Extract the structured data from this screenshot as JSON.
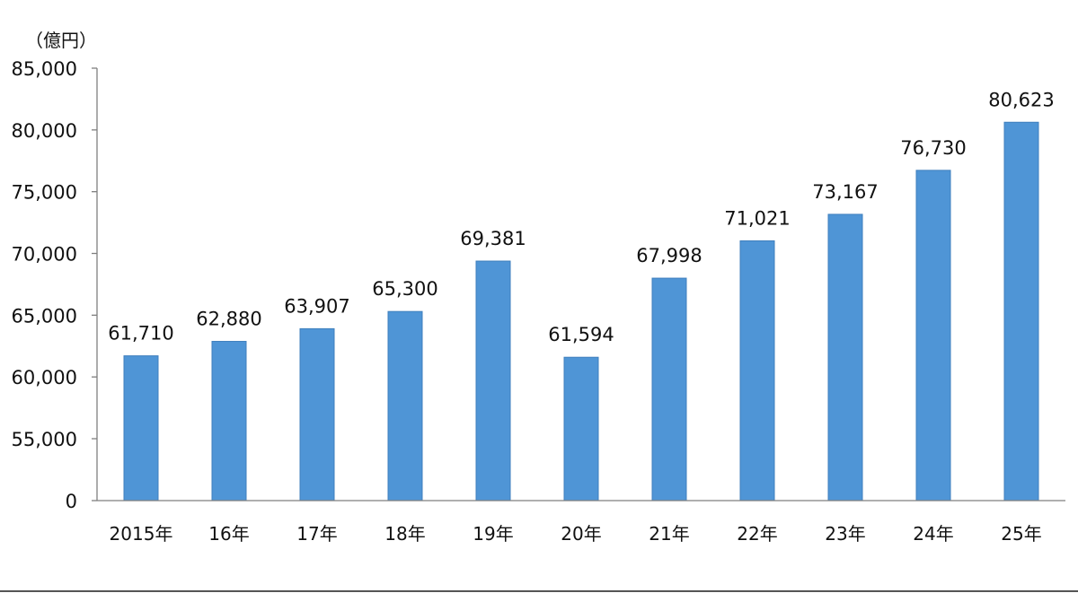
{
  "chart_data": {
    "type": "bar",
    "unit_label": "（億円）",
    "title": "",
    "xlabel": "",
    "ylabel": "",
    "categories": [
      "2015年",
      "16年",
      "17年",
      "18年",
      "19年",
      "20年",
      "21年",
      "22年",
      "23年",
      "24年",
      "25年"
    ],
    "series": [
      {
        "values": [
          61710,
          62880,
          63907,
          65300,
          69381,
          61594,
          67998,
          71021,
          73167,
          76730,
          80623
        ],
        "labels": [
          "61,710",
          "62,880",
          "63,907",
          "65,300",
          "69,381",
          "61,594",
          "67,998",
          "71,021",
          "73,167",
          "76,730",
          "80,623"
        ]
      }
    ],
    "y_axis": {
      "broken": true,
      "baseline_value": 0,
      "range_after_break": [
        50000,
        85000
      ],
      "ticks": [
        0,
        55000,
        60000,
        65000,
        70000,
        75000,
        80000,
        85000
      ],
      "tick_labels": [
        "0",
        "55,000",
        "60,000",
        "65,000",
        "70,000",
        "75,000",
        "80,000",
        "85,000"
      ]
    },
    "grid": false,
    "legend": "none",
    "colors": {
      "bar": "#4f95d6",
      "bar_edge": "#3f7fbd",
      "axis": "#7f7f7f"
    }
  }
}
